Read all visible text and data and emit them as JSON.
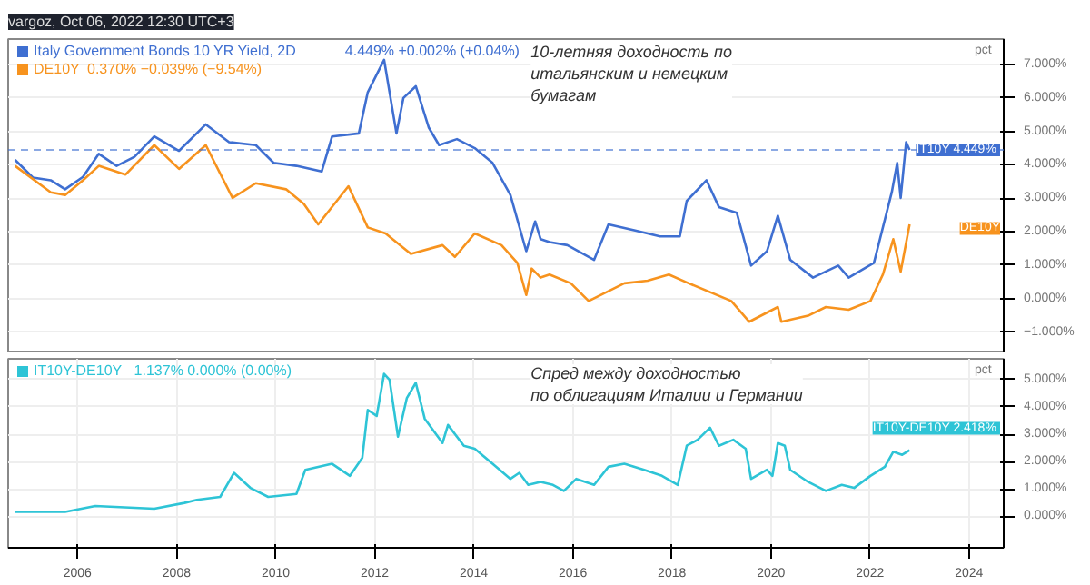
{
  "chart_data": [
    {
      "type": "line",
      "title": "vargoz, Oct 06, 2022 12:30 UTC+3",
      "ylabel": "pct",
      "legend": "top left",
      "grid": true,
      "tick_labels": "y",
      "line_style": "solid",
      "marker": "none",
      "xlim": [
        2004.6,
        2024.7
      ],
      "ylim": [
        -1.58,
        7.76
      ],
      "yticks": [
        {
          "value": -1,
          "label": "−1.000%"
        },
        {
          "value": 0,
          "label": "0.000%"
        },
        {
          "value": 1,
          "label": "1.000%"
        },
        {
          "value": 2,
          "label": "2.000%"
        },
        {
          "value": 3,
          "label": "3.000%"
        },
        {
          "value": 4,
          "label": "4.000%"
        },
        {
          "value": 5,
          "label": "5.000%"
        },
        {
          "value": 6,
          "label": "6.000%"
        },
        {
          "value": 7,
          "label": "7.000%"
        }
      ],
      "series": [
        {
          "name": "Italy Government Bonds 10 YR Yield, 2D",
          "color": "#3f6fd1",
          "x": [
            2004.74,
            2005.1,
            2005.46,
            2005.75,
            2006.11,
            2006.43,
            2006.79,
            2007.15,
            2007.55,
            2008.05,
            2008.59,
            2009.06,
            2009.6,
            2009.96,
            2010.42,
            2010.93,
            2011.14,
            2011.68,
            2011.86,
            2012.19,
            2012.44,
            2012.58,
            2012.83,
            2013.09,
            2013.3,
            2013.66,
            2014.02,
            2014.38,
            2014.74,
            2015.06,
            2015.24,
            2015.35,
            2015.53,
            2015.89,
            2016.43,
            2016.72,
            2017.26,
            2017.76,
            2018.16,
            2018.3,
            2018.7,
            2018.95,
            2019.31,
            2019.6,
            2019.92,
            2020.14,
            2020.39,
            2020.85,
            2021.36,
            2021.57,
            2022.08,
            2022.44,
            2022.55,
            2022.62,
            2022.73,
            2022.8
          ],
          "values": [
            4.15,
            3.62,
            3.54,
            3.27,
            3.64,
            4.33,
            3.97,
            4.24,
            4.85,
            4.42,
            5.21,
            4.68,
            4.59,
            4.06,
            3.97,
            3.8,
            4.85,
            4.94,
            6.17,
            7.14,
            4.94,
            6.0,
            6.35,
            5.12,
            4.59,
            4.77,
            4.5,
            4.06,
            3.1,
            1.42,
            2.31,
            1.78,
            1.69,
            1.6,
            1.16,
            2.22,
            2.04,
            1.86,
            1.86,
            2.92,
            3.54,
            2.74,
            2.57,
            0.99,
            1.42,
            2.48,
            1.16,
            0.63,
            0.99,
            0.63,
            1.07,
            3.18,
            4.06,
            3.01,
            4.68,
            4.449
          ]
        },
        {
          "name": "DE10Y",
          "color": "#f7931e",
          "x": [
            2004.74,
            2005.46,
            2005.75,
            2006.11,
            2006.43,
            2006.97,
            2007.55,
            2008.05,
            2008.59,
            2009.13,
            2009.6,
            2010.21,
            2010.57,
            2010.86,
            2011.47,
            2011.86,
            2012.22,
            2012.73,
            2013.37,
            2013.62,
            2014.02,
            2014.56,
            2014.88,
            2015.06,
            2015.17,
            2015.35,
            2015.53,
            2015.96,
            2016.32,
            2017.04,
            2017.51,
            2017.94,
            2018.34,
            2019.2,
            2019.56,
            2020.14,
            2020.21,
            2020.75,
            2021.11,
            2021.57,
            2022.01,
            2022.26,
            2022.47,
            2022.62,
            2022.8
          ],
          "values": [
            3.97,
            3.18,
            3.1,
            3.54,
            3.97,
            3.71,
            4.59,
            3.88,
            4.59,
            3.01,
            3.45,
            3.27,
            2.83,
            2.22,
            3.36,
            2.13,
            1.95,
            1.34,
            1.6,
            1.25,
            1.95,
            1.6,
            1.07,
            0.11,
            0.9,
            0.63,
            0.72,
            0.46,
            -0.07,
            0.46,
            0.54,
            0.72,
            0.46,
            -0.07,
            -0.69,
            -0.25,
            -0.69,
            -0.51,
            -0.25,
            -0.33,
            -0.07,
            0.72,
            1.78,
            0.81,
            2.22
          ]
        }
      ],
      "ref_lines": [
        {
          "axis": "y",
          "value": 4.449,
          "color": "#3f6fd1",
          "line_style": "dashed"
        }
      ],
      "annotations": [
        "4.449%  +0.002% (+0.04%)",
        "0.370%  −0.039% (−9.54%)",
        "10-летняя доходность по\nитальянским и немецким\nбумагам",
        {
          "text": "IT10Y  4.449%",
          "y": 4.449
        },
        {
          "text": "DE10Y",
          "y": 2.1
        }
      ]
    },
    {
      "type": "line",
      "ylabel": "pct",
      "legend": "top left",
      "grid": true,
      "line_style": "solid",
      "marker": "none",
      "xlim": [
        2004.6,
        2024.7
      ],
      "ylim": [
        -1.15,
        5.76
      ],
      "xticks": [
        2006,
        2008,
        2010,
        2012,
        2014,
        2016,
        2018,
        2020,
        2022,
        2024
      ],
      "yticks": [
        {
          "value": 0,
          "label": "0.000%"
        },
        {
          "value": 1,
          "label": "1.000%"
        },
        {
          "value": 2,
          "label": "2.000%"
        },
        {
          "value": 3,
          "label": "3.000%"
        },
        {
          "value": 4,
          "label": "4.000%"
        },
        {
          "value": 5,
          "label": "5.000%"
        }
      ],
      "series": [
        {
          "name": "IT10Y-DE10Y",
          "color": "#2ec4d6",
          "x": [
            2004.74,
            2005.75,
            2006.36,
            2007.55,
            2008.16,
            2008.41,
            2008.88,
            2009.16,
            2009.49,
            2009.85,
            2010.42,
            2010.6,
            2011.14,
            2011.5,
            2011.75,
            2011.86,
            2012.04,
            2012.19,
            2012.3,
            2012.47,
            2012.65,
            2012.83,
            2013.01,
            2013.37,
            2013.48,
            2013.8,
            2014.02,
            2014.38,
            2014.74,
            2014.92,
            2015.1,
            2015.35,
            2015.6,
            2015.82,
            2016.07,
            2016.43,
            2016.72,
            2017.04,
            2017.44,
            2017.8,
            2018.12,
            2018.3,
            2018.52,
            2018.77,
            2018.95,
            2019.24,
            2019.49,
            2019.6,
            2019.92,
            2020.03,
            2020.14,
            2020.28,
            2020.39,
            2020.75,
            2021.11,
            2021.43,
            2021.68,
            2022.01,
            2022.3,
            2022.47,
            2022.65,
            2022.8
          ],
          "values": [
            0.16,
            0.16,
            0.38,
            0.28,
            0.49,
            0.6,
            0.71,
            1.59,
            1.04,
            0.71,
            0.82,
            1.7,
            1.92,
            1.48,
            2.14,
            3.89,
            3.67,
            5.21,
            4.99,
            2.91,
            4.33,
            4.88,
            3.57,
            2.68,
            3.34,
            2.58,
            2.47,
            1.92,
            1.37,
            1.59,
            1.15,
            1.26,
            1.15,
            0.93,
            1.37,
            1.15,
            1.81,
            1.92,
            1.7,
            1.48,
            1.15,
            2.58,
            2.8,
            3.24,
            2.58,
            2.8,
            2.47,
            1.37,
            1.7,
            1.48,
            2.68,
            2.58,
            1.7,
            1.26,
            0.93,
            1.15,
            1.04,
            1.48,
            1.81,
            2.36,
            2.25,
            2.418
          ]
        }
      ],
      "annotations": [
        "1.137%  0.000% (0.00%)",
        "Спред между доходностью\nпо облигациям Италии и Германии",
        "IT10Y-DE10Y  2.418%"
      ]
    }
  ]
}
